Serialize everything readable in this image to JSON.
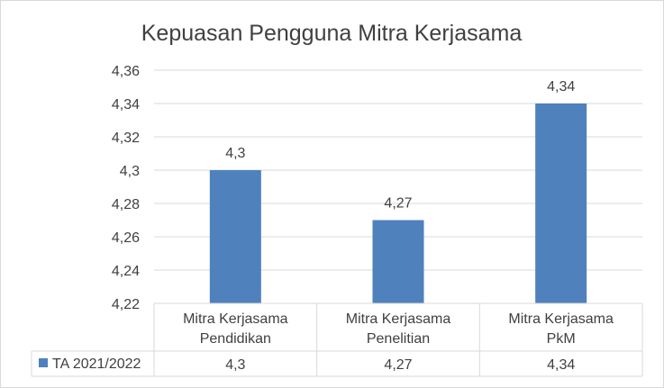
{
  "chart_data": {
    "type": "bar",
    "title": "Kepuasan Pengguna Mitra Kerjasama",
    "categories": [
      [
        "Mitra Kerjasama",
        "Pendidikan"
      ],
      [
        "Mitra Kerjasama",
        "Penelitian"
      ],
      [
        "Mitra Kerjasama",
        "PkM"
      ]
    ],
    "series": [
      {
        "name": "TA 2021/2022",
        "values": [
          4.3,
          4.27,
          4.34
        ],
        "labels": [
          "4,3",
          "4,27",
          "4,34"
        ],
        "color": "#4f81bd"
      }
    ],
    "yticks": [
      "4,22",
      "4,24",
      "4,26",
      "4,28",
      "4,3",
      "4,32",
      "4,34",
      "4,36"
    ],
    "ylim": [
      4.22,
      4.36
    ],
    "grid": true,
    "data_table": true
  }
}
